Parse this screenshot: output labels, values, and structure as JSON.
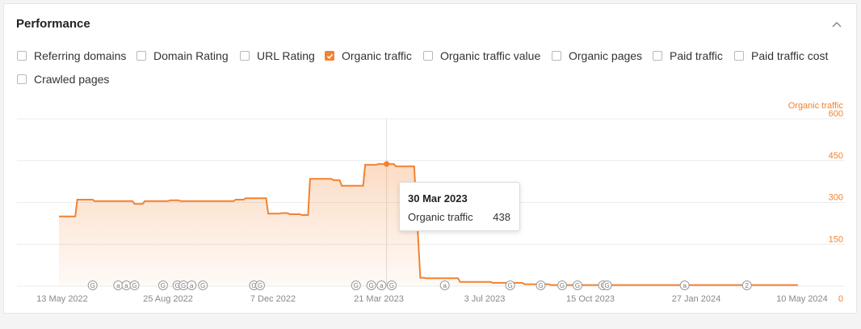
{
  "panel": {
    "title": "Performance"
  },
  "metrics": [
    {
      "label": "Referring domains",
      "checked": false
    },
    {
      "label": "Domain Rating",
      "checked": false
    },
    {
      "label": "URL Rating",
      "checked": false
    },
    {
      "label": "Organic traffic",
      "checked": true
    },
    {
      "label": "Organic traffic value",
      "checked": false
    },
    {
      "label": "Organic pages",
      "checked": false
    },
    {
      "label": "Paid traffic",
      "checked": false
    },
    {
      "label": "Paid traffic cost",
      "checked": false
    },
    {
      "label": "Crawled pages",
      "checked": false
    }
  ],
  "colors": {
    "accent": "#f28230",
    "grid": "#ececec",
    "axis_text": "#888888"
  },
  "chart_data": {
    "type": "area",
    "series_label": "Organic traffic",
    "ylim": [
      0,
      600
    ],
    "y_ticks": [
      "0",
      "150",
      "300",
      "450",
      "600"
    ],
    "x_ticks": [
      "13 May 2022",
      "25 Aug 2022",
      "7 Dec 2022",
      "21 Mar 2023",
      "3 Jul 2023",
      "15 Oct 2023",
      "27 Jan 2024",
      "10 May 2024"
    ],
    "xlim": [
      "2022-05-13",
      "2024-05-10"
    ],
    "series": [
      {
        "name": "Organic traffic",
        "points": [
          [
            "2022-05-13",
            250
          ],
          [
            "2022-05-29",
            250
          ],
          [
            "2022-05-31",
            310
          ],
          [
            "2022-06-15",
            310
          ],
          [
            "2022-06-17",
            305
          ],
          [
            "2022-07-24",
            305
          ],
          [
            "2022-07-26",
            295
          ],
          [
            "2022-08-03",
            295
          ],
          [
            "2022-08-05",
            305
          ],
          [
            "2022-08-28",
            305
          ],
          [
            "2022-08-30",
            308
          ],
          [
            "2022-09-07",
            308
          ],
          [
            "2022-09-09",
            305
          ],
          [
            "2022-10-31",
            305
          ],
          [
            "2022-11-02",
            310
          ],
          [
            "2022-11-10",
            310
          ],
          [
            "2022-11-12",
            315
          ],
          [
            "2022-12-02",
            315
          ],
          [
            "2022-12-04",
            260
          ],
          [
            "2022-12-15",
            260
          ],
          [
            "2022-12-17",
            262
          ],
          [
            "2022-12-23",
            262
          ],
          [
            "2022-12-25",
            258
          ],
          [
            "2023-01-04",
            258
          ],
          [
            "2023-01-06",
            255
          ],
          [
            "2023-01-12",
            255
          ],
          [
            "2023-01-14",
            385
          ],
          [
            "2023-02-04",
            385
          ],
          [
            "2023-02-06",
            380
          ],
          [
            "2023-02-12",
            380
          ],
          [
            "2023-02-14",
            360
          ],
          [
            "2023-03-07",
            360
          ],
          [
            "2023-03-09",
            435
          ],
          [
            "2023-03-20",
            435
          ],
          [
            "2023-03-22",
            438
          ],
          [
            "2023-04-06",
            438
          ],
          [
            "2023-04-08",
            430
          ],
          [
            "2023-04-26",
            430
          ],
          [
            "2023-05-02",
            30
          ],
          [
            "2023-05-06",
            30
          ],
          [
            "2023-05-08",
            28
          ],
          [
            "2023-06-08",
            28
          ],
          [
            "2023-06-10",
            15
          ],
          [
            "2023-07-10",
            15
          ],
          [
            "2023-07-12",
            12
          ],
          [
            "2023-08-10",
            12
          ],
          [
            "2023-08-12",
            7
          ],
          [
            "2023-09-05",
            7
          ],
          [
            "2023-09-07",
            4
          ],
          [
            "2024-05-06",
            4
          ]
        ]
      }
    ],
    "hover": {
      "date": "2023-03-30",
      "value": 438
    },
    "annotations": [
      {
        "date": "2022-06-15",
        "label": "G"
      },
      {
        "date": "2022-07-10",
        "label": "a"
      },
      {
        "date": "2022-07-18",
        "label": "a"
      },
      {
        "date": "2022-07-26",
        "label": "G"
      },
      {
        "date": "2022-08-23",
        "label": "G"
      },
      {
        "date": "2022-09-06",
        "label": "G"
      },
      {
        "date": "2022-09-12",
        "label": "G"
      },
      {
        "date": "2022-09-20",
        "label": "a"
      },
      {
        "date": "2022-10-01",
        "label": "G"
      },
      {
        "date": "2022-11-20",
        "label": "G"
      },
      {
        "date": "2022-11-26",
        "label": "G"
      },
      {
        "date": "2023-02-28",
        "label": "G"
      },
      {
        "date": "2023-03-15",
        "label": "G"
      },
      {
        "date": "2023-03-25",
        "label": "a"
      },
      {
        "date": "2023-04-04",
        "label": "G"
      },
      {
        "date": "2023-05-26",
        "label": "a"
      },
      {
        "date": "2023-07-29",
        "label": "G"
      },
      {
        "date": "2023-08-28",
        "label": "G"
      },
      {
        "date": "2023-09-18",
        "label": "G"
      },
      {
        "date": "2023-10-03",
        "label": "G"
      },
      {
        "date": "2023-10-28",
        "label": "G"
      },
      {
        "date": "2023-11-01",
        "label": "G"
      },
      {
        "date": "2024-01-16",
        "label": "a"
      },
      {
        "date": "2024-03-17",
        "label": "2"
      }
    ],
    "tooltip": {
      "date": "30 Mar 2023",
      "label": "Organic traffic",
      "value": "438"
    }
  }
}
